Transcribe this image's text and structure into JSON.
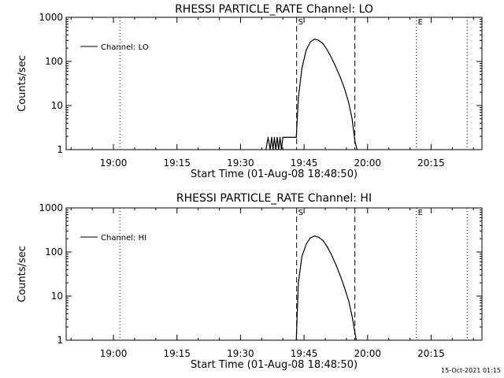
{
  "chart_data": [
    {
      "type": "line",
      "title": "RHESSI PARTICLE_RATE Channel: LO",
      "xlabel": "Start Time (01-Aug-08 18:48:50)",
      "ylabel": "Counts/sec",
      "yscale": "log",
      "ylim": [
        1,
        1000
      ],
      "xlim": [
        "18:48:50",
        "20:27:00"
      ],
      "xticks": [
        "19:00",
        "19:15",
        "19:30",
        "19:45",
        "20:00",
        "20:15"
      ],
      "yticks": [
        "1",
        "10",
        "100",
        "1000"
      ],
      "grid": false,
      "legend": {
        "position": "top-left",
        "entries": [
          "Channel: LO"
        ]
      },
      "markers": [
        {
          "label": "S",
          "time": "19:43:15",
          "style": "dashed"
        },
        {
          "label": "",
          "time": "19:57:00",
          "style": "dashed"
        },
        {
          "label": "E",
          "time": "20:11:30",
          "style": "dotted"
        },
        {
          "label": "",
          "time": "20:23:30",
          "style": "dotted"
        },
        {
          "label": "",
          "time": "19:01:30",
          "style": "dotted"
        }
      ],
      "series": [
        {
          "name": "Channel: LO",
          "x": [
            "19:36:00",
            "19:36:30",
            "19:37:00",
            "19:37:20",
            "19:37:40",
            "19:38:00",
            "19:38:20",
            "19:38:40",
            "19:39:00",
            "19:39:20",
            "19:39:40",
            "19:40:00",
            "19:43:10",
            "19:43:40",
            "19:44:30",
            "19:45:30",
            "19:46:30",
            "19:47:30",
            "19:48:30",
            "19:49:30",
            "19:50:30",
            "19:51:30",
            "19:52:30",
            "19:53:30",
            "19:54:30",
            "19:55:30",
            "19:56:20",
            "19:57:00",
            "19:57:30"
          ],
          "y": [
            1,
            1.9,
            1,
            1.9,
            1,
            1.9,
            1,
            1.9,
            1,
            1.9,
            1,
            1.9,
            1.9,
            15,
            70,
            180,
            280,
            320,
            300,
            250,
            180,
            120,
            75,
            45,
            25,
            12,
            5,
            1.6,
            1
          ]
        }
      ]
    },
    {
      "type": "line",
      "title": "RHESSI PARTICLE_RATE Channel: HI",
      "xlabel": "Start Time (01-Aug-08 18:48:50)",
      "ylabel": "Counts/sec",
      "yscale": "log",
      "ylim": [
        1,
        1000
      ],
      "xlim": [
        "18:48:50",
        "20:27:00"
      ],
      "xticks": [
        "19:00",
        "19:15",
        "19:30",
        "19:45",
        "20:00",
        "20:15"
      ],
      "yticks": [
        "1",
        "10",
        "100",
        "1000"
      ],
      "grid": false,
      "legend": {
        "position": "top-left",
        "entries": [
          "Channel: HI"
        ]
      },
      "markers": [
        {
          "label": "S",
          "time": "19:43:15",
          "style": "dashed"
        },
        {
          "label": "",
          "time": "19:57:00",
          "style": "dashed"
        },
        {
          "label": "E",
          "time": "20:11:30",
          "style": "dotted"
        },
        {
          "label": "",
          "time": "20:23:30",
          "style": "dotted"
        },
        {
          "label": "",
          "time": "19:01:30",
          "style": "dotted"
        }
      ],
      "series": [
        {
          "name": "Channel: HI",
          "x": [
            "19:43:10",
            "19:43:40",
            "19:44:30",
            "19:45:30",
            "19:46:30",
            "19:47:30",
            "19:48:30",
            "19:49:30",
            "19:50:30",
            "19:51:30",
            "19:52:30",
            "19:53:30",
            "19:54:30",
            "19:55:30",
            "19:56:20",
            "19:57:00",
            "19:57:20"
          ],
          "y": [
            1,
            20,
            80,
            150,
            210,
            230,
            215,
            180,
            130,
            85,
            52,
            30,
            16,
            8,
            3.5,
            1.5,
            1
          ]
        }
      ]
    }
  ],
  "timestamp": "15-Oct-2021 01:15"
}
